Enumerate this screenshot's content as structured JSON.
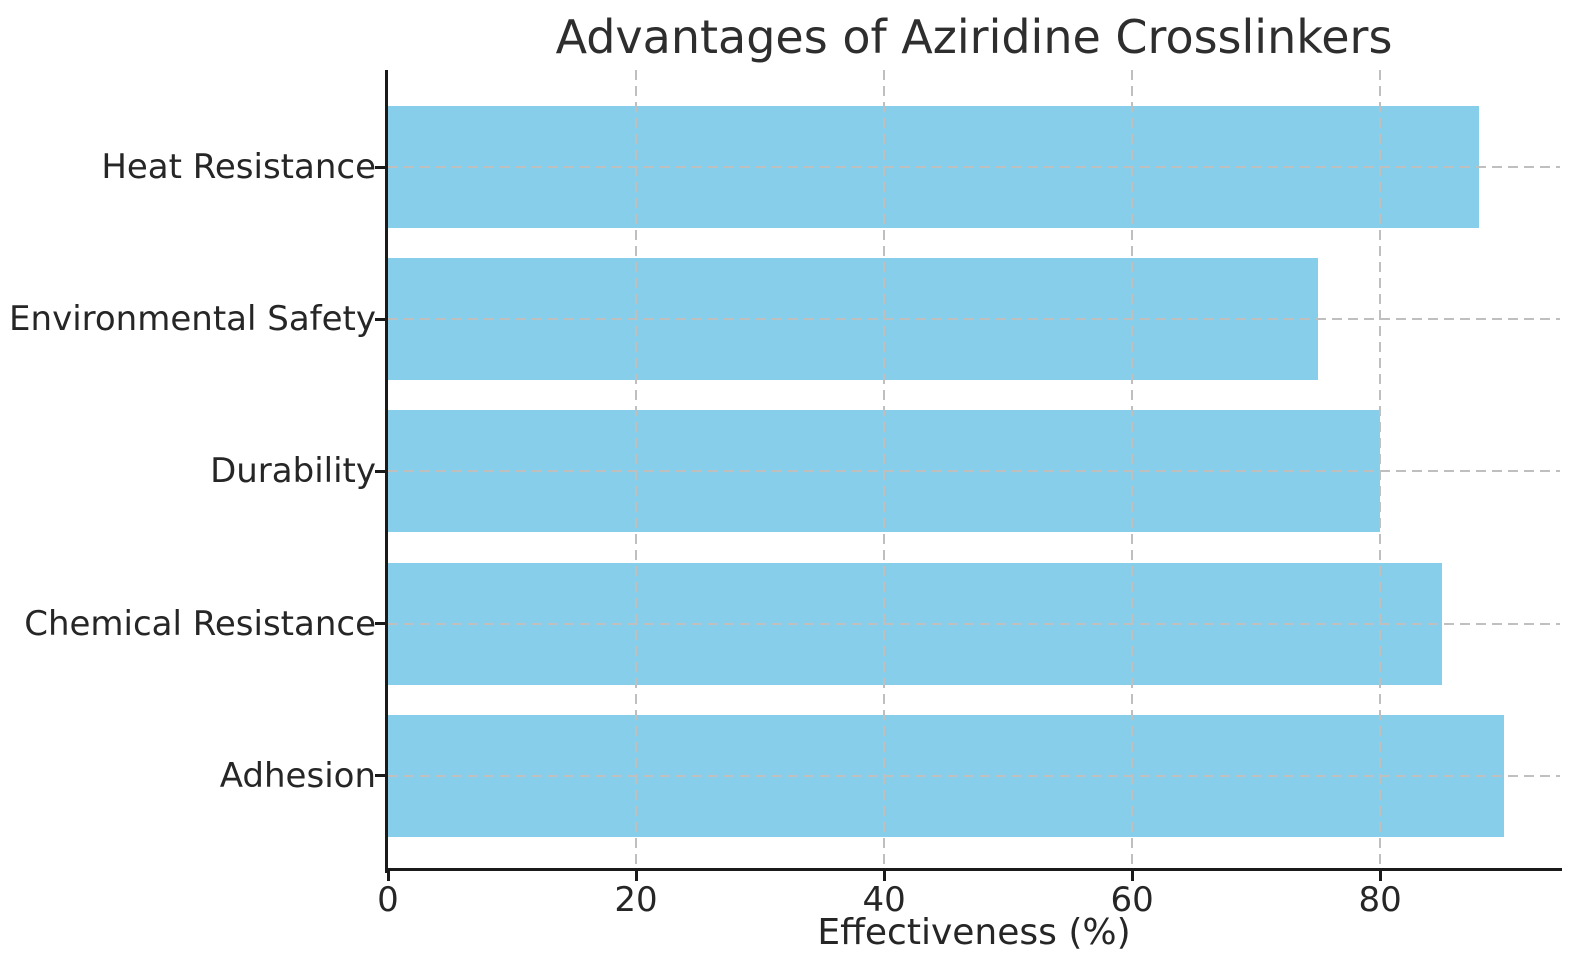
{
  "chart_data": {
    "type": "bar",
    "orientation": "horizontal",
    "title": "Advantages of Aziridine Crosslinkers",
    "xlabel": "Effectiveness (%)",
    "ylabel": "",
    "categories": [
      "Heat Resistance",
      "Environmental Safety",
      "Durability",
      "Chemical Resistance",
      "Adhesion"
    ],
    "values": [
      88,
      75,
      80,
      85,
      90
    ],
    "xticks": [
      0,
      20,
      40,
      60,
      80
    ],
    "xlim": [
      0,
      94.5
    ],
    "grid": "dashed, drawn over bars, both axes",
    "legend": "none",
    "colors": {
      "bar_fill": "#87CEEB",
      "grid_line": "#bfbfbf",
      "spine": "#1a1a1a",
      "text": "#262626",
      "title_text": "#2e2e2e",
      "background": "#ffffff"
    }
  }
}
